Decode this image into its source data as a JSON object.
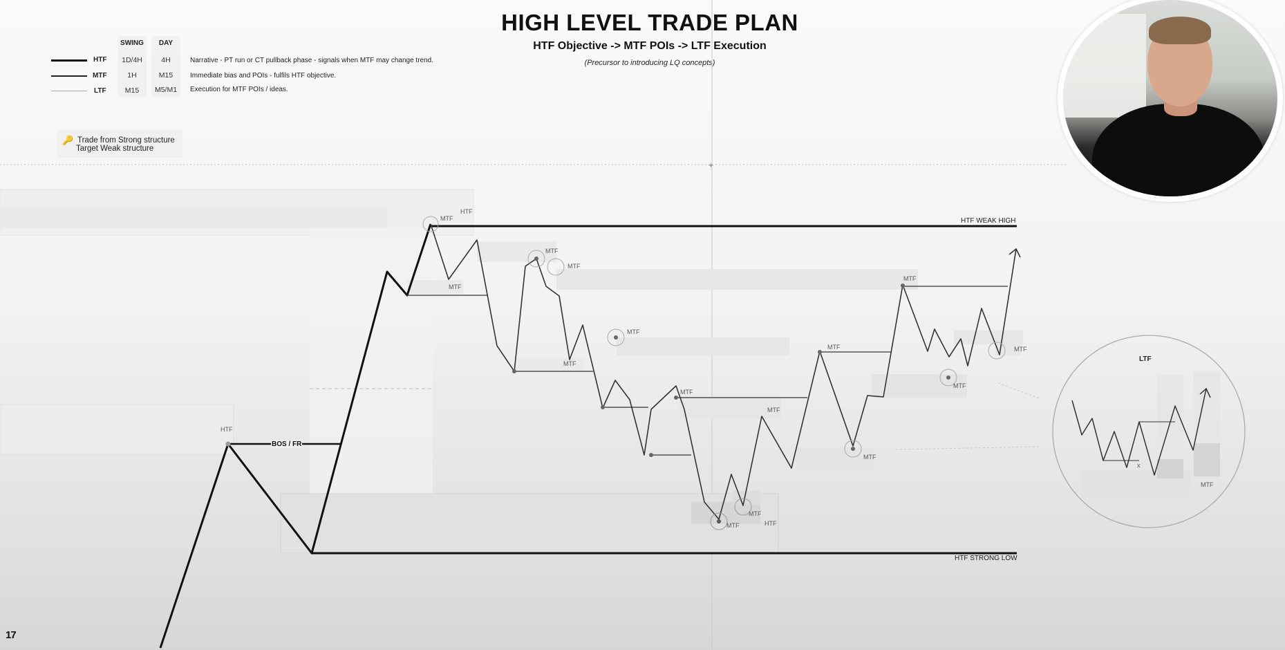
{
  "header": {
    "title": "HIGH LEVEL TRADE PLAN",
    "subtitle": "HTF Objective -> MTF POIs -> LTF Execution",
    "note": "(Precursor to introducing LQ concepts)"
  },
  "legend": {
    "col_swing": "SWING",
    "col_day": "DAY",
    "rows": [
      {
        "tf": "HTF",
        "swing": "1D/4H",
        "day": "4H",
        "desc": "Narrative - PT run or CT pullback phase - signals when MTF may change trend."
      },
      {
        "tf": "MTF",
        "swing": "1H",
        "day": "M15",
        "desc": "Immediate bias and POIs - fulfils HTF objective."
      },
      {
        "tf": "LTF",
        "swing": "M15",
        "day": "M5/M1",
        "desc": "Execution for MTF POIs / ideas."
      }
    ]
  },
  "tip": {
    "line1": "Trade from Strong structure",
    "line2": "Target Weak structure"
  },
  "diagram": {
    "htf_weak_high": "HTF WEAK HIGH",
    "htf_strong_low": "HTF STRONG LOW",
    "bos_label": "BOS / FR",
    "mtf": "MTF",
    "htf": "HTF",
    "ltf_title": "LTF",
    "ltf_x": "x"
  },
  "colors": {
    "line": "#111111",
    "zone": "#e9e9e9",
    "webcam_ring": "#ffffff"
  },
  "icons": {
    "key": "key-icon",
    "tradingview": "tradingview-logo"
  },
  "logo": {
    "text": "17"
  }
}
